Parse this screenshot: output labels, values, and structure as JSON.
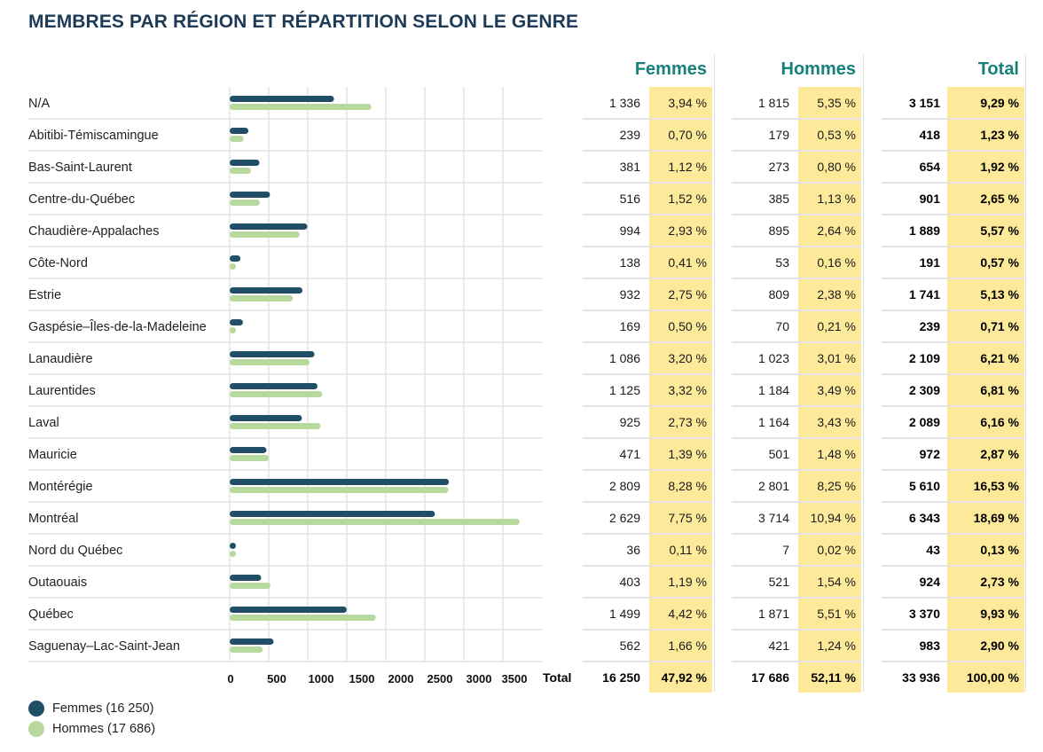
{
  "title": "MEMBRES PAR RÉGION ET RÉPARTITION SELON LE GENRE",
  "colors": {
    "title": "#1d3a56",
    "header": "#17807a",
    "femmes": "#1f4e66",
    "hommes": "#b7d99e",
    "highlight": "#fde99a",
    "grid": "#e4e4e4"
  },
  "table": {
    "headers": {
      "femmes": "Femmes",
      "hommes": "Hommes",
      "total": "Total"
    },
    "rows": [
      {
        "region": "N/A",
        "femmes": "1 336",
        "femmes_pct": "3,94 %",
        "hommes": "1 815",
        "hommes_pct": "5,35 %",
        "total": "3 151",
        "total_pct": "9,29 %"
      },
      {
        "region": "Abitibi-Témiscamingue",
        "femmes": "239",
        "femmes_pct": "0,70 %",
        "hommes": "179",
        "hommes_pct": "0,53 %",
        "total": "418",
        "total_pct": "1,23 %"
      },
      {
        "region": "Bas-Saint-Laurent",
        "femmes": "381",
        "femmes_pct": "1,12 %",
        "hommes": "273",
        "hommes_pct": "0,80 %",
        "total": "654",
        "total_pct": "1,92 %"
      },
      {
        "region": "Centre-du-Québec",
        "femmes": "516",
        "femmes_pct": "1,52 %",
        "hommes": "385",
        "hommes_pct": "1,13 %",
        "total": "901",
        "total_pct": "2,65 %"
      },
      {
        "region": "Chaudière-Appalaches",
        "femmes": "994",
        "femmes_pct": "2,93 %",
        "hommes": "895",
        "hommes_pct": "2,64 %",
        "total": "1 889",
        "total_pct": "5,57 %"
      },
      {
        "region": "Côte-Nord",
        "femmes": "138",
        "femmes_pct": "0,41 %",
        "hommes": "53",
        "hommes_pct": "0,16 %",
        "total": "191",
        "total_pct": "0,57 %"
      },
      {
        "region": "Estrie",
        "femmes": "932",
        "femmes_pct": "2,75 %",
        "hommes": "809",
        "hommes_pct": "2,38 %",
        "total": "1 741",
        "total_pct": "5,13 %"
      },
      {
        "region": "Gaspésie–Îles-de-la-Madeleine",
        "femmes": "169",
        "femmes_pct": "0,50 %",
        "hommes": "70",
        "hommes_pct": "0,21 %",
        "total": "239",
        "total_pct": "0,71 %"
      },
      {
        "region": "Lanaudière",
        "femmes": "1 086",
        "femmes_pct": "3,20 %",
        "hommes": "1 023",
        "hommes_pct": "3,01 %",
        "total": "2 109",
        "total_pct": "6,21 %"
      },
      {
        "region": "Laurentides",
        "femmes": "1 125",
        "femmes_pct": "3,32 %",
        "hommes": "1 184",
        "hommes_pct": "3,49 %",
        "total": "2 309",
        "total_pct": "6,81 %"
      },
      {
        "region": "Laval",
        "femmes": "925",
        "femmes_pct": "2,73 %",
        "hommes": "1 164",
        "hommes_pct": "3,43 %",
        "total": "2 089",
        "total_pct": "6,16 %"
      },
      {
        "region": "Mauricie",
        "femmes": "471",
        "femmes_pct": "1,39 %",
        "hommes": "501",
        "hommes_pct": "1,48 %",
        "total": "972",
        "total_pct": "2,87 %"
      },
      {
        "region": "Montérégie",
        "femmes": "2 809",
        "femmes_pct": "8,28 %",
        "hommes": "2 801",
        "hommes_pct": "8,25 %",
        "total": "5 610",
        "total_pct": "16,53 %"
      },
      {
        "region": "Montréal",
        "femmes": "2 629",
        "femmes_pct": "7,75 %",
        "hommes": "3 714",
        "hommes_pct": "10,94 %",
        "total": "6 343",
        "total_pct": "18,69 %"
      },
      {
        "region": "Nord du Québec",
        "femmes": "36",
        "femmes_pct": "0,11 %",
        "hommes": "7",
        "hommes_pct": "0,02 %",
        "total": "43",
        "total_pct": "0,13 %"
      },
      {
        "region": "Outaouais",
        "femmes": "403",
        "femmes_pct": "1,19 %",
        "hommes": "521",
        "hommes_pct": "1,54 %",
        "total": "924",
        "total_pct": "2,73 %"
      },
      {
        "region": "Québec",
        "femmes": "1 499",
        "femmes_pct": "4,42 %",
        "hommes": "1 871",
        "hommes_pct": "5,51 %",
        "total": "3 370",
        "total_pct": "9,93 %"
      },
      {
        "region": "Saguenay–Lac-Saint-Jean",
        "femmes": "562",
        "femmes_pct": "1,66 %",
        "hommes": "421",
        "hommes_pct": "1,24 %",
        "total": "983",
        "total_pct": "2,90 %"
      }
    ],
    "total_row": {
      "label": "Total",
      "femmes": "16 250",
      "femmes_pct": "47,92 %",
      "hommes": "17 686",
      "hommes_pct": "52,11 %",
      "total": "33 936",
      "total_pct": "100,00 %"
    }
  },
  "legend": [
    {
      "label": "Femmes (16 250)",
      "color": "#1f4e66"
    },
    {
      "label": "Hommes (17 686)",
      "color": "#b7d99e"
    }
  ],
  "chart_data": {
    "type": "bar",
    "orientation": "horizontal",
    "title": "MEMBRES PAR RÉGION ET RÉPARTITION SELON LE GENRE",
    "xlabel": "",
    "ylabel": "",
    "xlim": [
      0,
      3500
    ],
    "x_ticks": [
      0,
      500,
      1000,
      1500,
      2000,
      2500,
      3000,
      3500
    ],
    "x_tick_labels": [
      "0",
      "500",
      "1000",
      "1500",
      "2000",
      "2500",
      "3000",
      "3500"
    ],
    "grid": true,
    "legend_position": "bottom-left",
    "categories": [
      "N/A",
      "Abitibi-Témiscamingue",
      "Bas-Saint-Laurent",
      "Centre-du-Québec",
      "Chaudière-Appalaches",
      "Côte-Nord",
      "Estrie",
      "Gaspésie–Îles-de-la-Madeleine",
      "Lanaudière",
      "Laurentides",
      "Laval",
      "Mauricie",
      "Montérégie",
      "Montréal",
      "Nord du Québec",
      "Outaouais",
      "Québec",
      "Saguenay–Lac-Saint-Jean"
    ],
    "series": [
      {
        "name": "Femmes",
        "color": "#1f4e66",
        "values": [
          1336,
          239,
          381,
          516,
          994,
          138,
          932,
          169,
          1086,
          1125,
          925,
          471,
          2809,
          2629,
          36,
          403,
          1499,
          562
        ]
      },
      {
        "name": "Hommes",
        "color": "#b7d99e",
        "values": [
          1815,
          179,
          273,
          385,
          895,
          53,
          809,
          70,
          1023,
          1184,
          1164,
          501,
          2801,
          3714,
          7,
          521,
          1871,
          421
        ]
      }
    ]
  }
}
